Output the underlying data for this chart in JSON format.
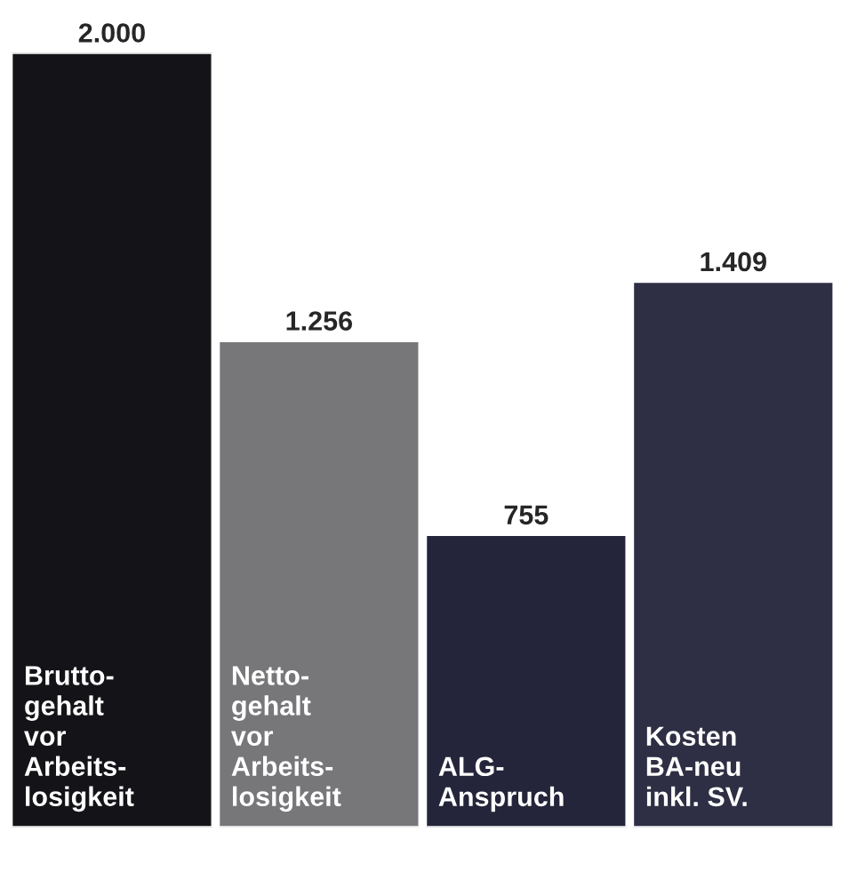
{
  "chart_data": {
    "type": "bar",
    "categories": [
      "Brutto-\ngehalt\nvor\nArbeits-\nlosigkeit",
      "Netto-\ngehalt\nvor\nArbeits-\nlosigkeit",
      "ALG-\nAnspruch",
      "Kosten\nBA-neu\ninkl. SV."
    ],
    "values": [
      2000,
      1256,
      755,
      1409
    ],
    "colors": [
      "#141418",
      "#77777a",
      "#24243a",
      "#2e2e44"
    ],
    "value_labels": [
      "2.000",
      "1.256",
      "755",
      "1.409"
    ]
  }
}
